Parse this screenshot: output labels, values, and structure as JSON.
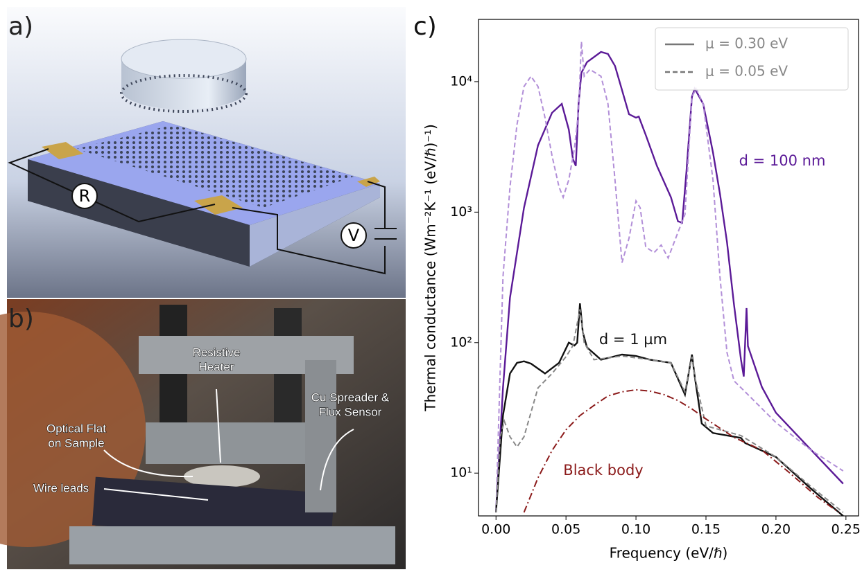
{
  "panels": {
    "a": {
      "label": "a)",
      "circuit_labels": [
        "R",
        "V"
      ]
    },
    "b": {
      "label": "b)",
      "annotations": [
        {
          "lines": [
            "Resistive",
            "Heater"
          ]
        },
        {
          "lines": [
            "Cu Spreader &",
            "Flux Sensor"
          ]
        },
        {
          "lines": [
            "Optical Flat",
            "on Sample"
          ]
        },
        {
          "lines": [
            "Wire leads"
          ]
        }
      ]
    },
    "c": {
      "label": "c)"
    }
  },
  "chart_data": {
    "type": "line",
    "x_label": "Frequency (eV/ℏ)",
    "y_label": "Thermal conductance (Wm⁻²K⁻¹ (eV/ℏ)⁻¹)",
    "log_y": true,
    "xlim": [
      -0.0125,
      0.259
    ],
    "ylim": [
      4.7,
      30000
    ],
    "xticks": [
      {
        "value": 0,
        "label": "0.00"
      },
      0.05,
      {
        "value": 0.1,
        "label": "0.10"
      },
      0.15,
      {
        "value": 0.2,
        "label": "0.20"
      },
      0.25
    ],
    "yticks": [
      {
        "value": 10,
        "label": "10¹"
      },
      {
        "value": 100,
        "label": "10²"
      },
      {
        "value": 1000,
        "label": "10³"
      },
      {
        "value": 10000,
        "label": "10⁴"
      }
    ],
    "legend_position": "upper right",
    "legend": [
      {
        "label": "μ = 0.30 eV",
        "dash": "solid"
      },
      {
        "label": "μ = 0.05 eV",
        "dash": "dashed"
      }
    ],
    "annotations": [
      "d = 100 nm",
      "d = 1 µm"
    ],
    "series": [
      {
        "color": "#5b1a97",
        "dash": "solid",
        "x": [
          0,
          0.005,
          0.01,
          0.02,
          0.03,
          0.04,
          0.047,
          0.052,
          0.055,
          0.057,
          0.059,
          0.061,
          0.065,
          0.075,
          0.08,
          0.085,
          0.09,
          0.095,
          0.1,
          0.102,
          0.107,
          0.115,
          0.125,
          0.13,
          0.133,
          0.136,
          0.14,
          0.142,
          0.148,
          0.155,
          0.16,
          0.165,
          0.17,
          0.175,
          0.177,
          0.179,
          0.18,
          0.19,
          0.2,
          0.22,
          0.248
        ],
        "values": [
          5,
          45,
          221,
          1080,
          3250,
          5770,
          6760,
          4300,
          2550,
          2260,
          6760,
          11700,
          14100,
          16900,
          16300,
          13200,
          8640,
          5630,
          5300,
          5400,
          3900,
          2260,
          1300,
          850,
          830,
          2000,
          7640,
          8850,
          6760,
          2870,
          1380,
          590,
          196,
          74,
          55,
          184,
          94,
          45.6,
          29,
          17.2,
          8.3
        ]
      },
      {
        "color": "#b28fd8",
        "dash": "dashed",
        "x": [
          0,
          0.005,
          0.01,
          0.015,
          0.02,
          0.025,
          0.03,
          0.035,
          0.04,
          0.045,
          0.048,
          0.052,
          0.056,
          0.059,
          0.061,
          0.063,
          0.067,
          0.075,
          0.08,
          0.085,
          0.09,
          0.095,
          0.1,
          0.103,
          0.107,
          0.113,
          0.118,
          0.123,
          0.13,
          0.135,
          0.14,
          0.143,
          0.148,
          0.155,
          0.16,
          0.165,
          0.17,
          0.18,
          0.2,
          0.225,
          0.248
        ],
        "values": [
          5,
          319,
          1560,
          4690,
          9180,
          11000,
          9180,
          5300,
          2710,
          1560,
          1300,
          1770,
          3070,
          6000,
          20300,
          11000,
          12400,
          11000,
          6760,
          1770,
          410,
          630,
          1220,
          1080,
          540,
          490,
          560,
          445,
          700,
          960,
          7640,
          8850,
          6760,
          1770,
          319,
          84,
          51,
          40,
          24.4,
          15,
          10.4
        ]
      },
      {
        "color": "#111111",
        "dash": "solid",
        "x": [
          0,
          0.005,
          0.01,
          0.015,
          0.02,
          0.025,
          0.035,
          0.045,
          0.052,
          0.056,
          0.058,
          0.06,
          0.062,
          0.065,
          0.075,
          0.09,
          0.1,
          0.11,
          0.125,
          0.135,
          0.14,
          0.142,
          0.147,
          0.155,
          0.175,
          0.178,
          0.2,
          0.225,
          0.248
        ],
        "values": [
          5,
          27.6,
          58,
          70,
          72,
          69,
          58,
          70,
          100,
          95,
          100,
          200,
          120,
          92,
          74,
          81,
          79,
          74,
          70,
          40,
          81,
          55,
          24,
          20.3,
          18.6,
          17,
          13.3,
          7.6,
          4.7
        ]
      },
      {
        "color": "#888888",
        "dash": "dashed",
        "x": [
          0,
          0.003,
          0.006,
          0.01,
          0.015,
          0.02,
          0.03,
          0.04,
          0.05,
          0.055,
          0.06,
          0.063,
          0.07,
          0.09,
          0.11,
          0.125,
          0.135,
          0.14,
          0.142,
          0.15,
          0.175,
          0.2,
          0.225,
          0.248
        ],
        "values": [
          5,
          19,
          25,
          19,
          15.9,
          19,
          45,
          58,
          78,
          95,
          180,
          100,
          74,
          79,
          74,
          70,
          42,
          78,
          55,
          23,
          19.4,
          13.3,
          7.9,
          5
        ]
      },
      {
        "name": "Black body",
        "color": "#8b1a1a",
        "dash": "dashdot",
        "x": [
          0.02,
          0.03,
          0.04,
          0.05,
          0.06,
          0.07,
          0.08,
          0.09,
          0.1,
          0.11,
          0.12,
          0.13,
          0.14,
          0.15,
          0.17,
          0.19,
          0.21,
          0.23,
          0.245
        ],
        "values": [
          5,
          9.2,
          14.9,
          21.5,
          27.6,
          33,
          39,
          42,
          43.5,
          42.5,
          40,
          36,
          31,
          26,
          18.8,
          15,
          10,
          6.5,
          5
        ]
      }
    ]
  }
}
